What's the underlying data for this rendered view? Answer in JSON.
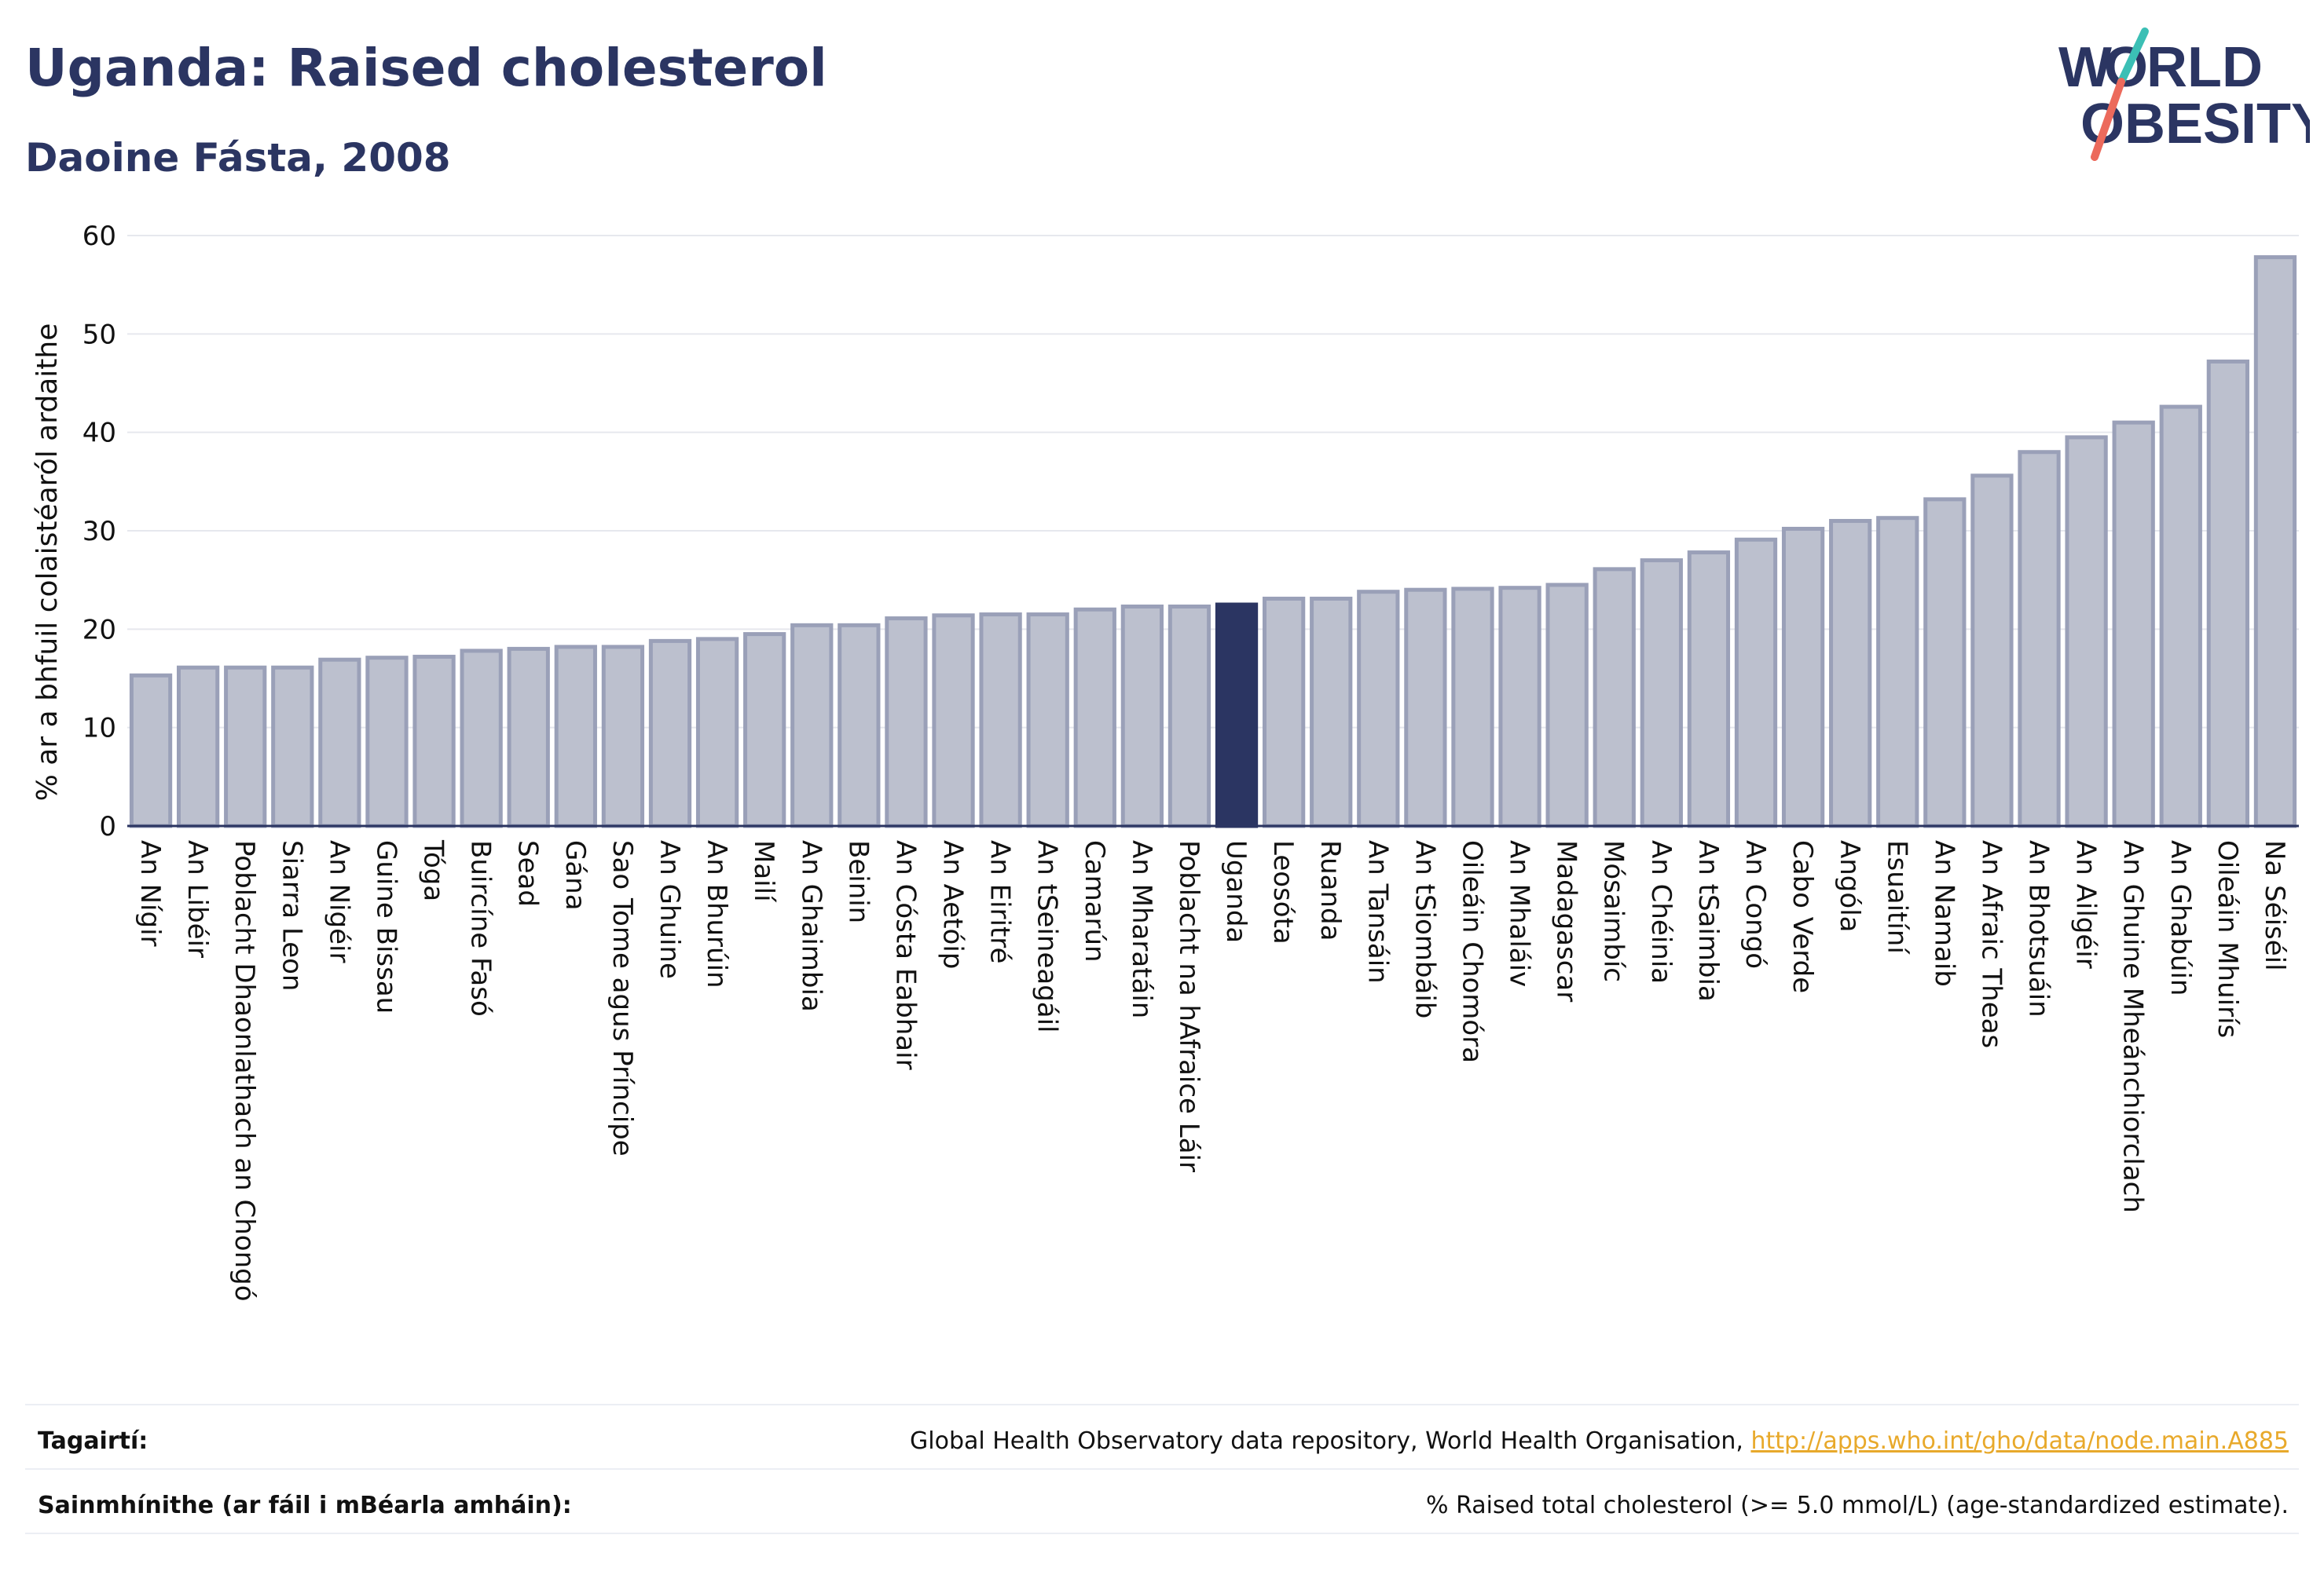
{
  "title": "Uganda: Raised cholesterol",
  "subtitle": "Daoine Fásta, 2008",
  "logo": {
    "line1": "W",
    "o_mark": "O",
    "line1_rest": "RLD",
    "line2": "OBESITY",
    "accent_teal": "#3bbfb5",
    "accent_coral": "#ec6a5c"
  },
  "colors": {
    "bar": "#bcc0ce",
    "bar_stroke": "#9aa0b8",
    "highlight": "#2b3562",
    "axis": "#2b3562",
    "grid": "#e6e8ee"
  },
  "chart_data": {
    "type": "bar",
    "ylabel": "% ar a bhfuil colaistéaról ardaithe",
    "ylim": [
      0,
      60
    ],
    "yticks": [
      0,
      10,
      20,
      30,
      40,
      50,
      60
    ],
    "grid": true,
    "highlight": "Uganda",
    "categories": [
      "An Nígir",
      "An Libéir",
      "Poblacht Dhaonlathach an Chongó",
      "Siarra Leon",
      "An Nigéir",
      "Guine Bissau",
      "Tóga",
      "Buircíne Fasó",
      "Sead",
      "Gána",
      "Sao Tome agus Príncipe",
      "An Ghuine",
      "An Bhurúin",
      "Mailí",
      "An Ghaimbia",
      "Beinin",
      "An Cósta Eabhair",
      "An Aetóip",
      "An Eiritré",
      "An tSeineagáil",
      "Camarún",
      "An Mharatáin",
      "Poblacht na hAfraice Láir",
      "Uganda",
      "Leosóta",
      "Ruanda",
      "An Tansáin",
      "An tSiombáib",
      "Oileáin Chomóra",
      "An Mhaláiv",
      "Madagascar",
      "Mósaimbíc",
      "An Chéinia",
      "An tSaimbia",
      "An Congó",
      "Cabo Verde",
      "Angóla",
      "Esuaitíní",
      "An Namaib",
      "An Afraic Theas",
      "An Bhotsuáin",
      "An Ailgéir",
      "An Ghuine Mheánchiorclach",
      "An Ghabúin",
      "Oileáin Mhuirís",
      "Na Séiséil"
    ],
    "values": [
      15.3,
      16.1,
      16.1,
      16.1,
      16.9,
      17.1,
      17.2,
      17.8,
      18.0,
      18.2,
      18.2,
      18.8,
      19.0,
      19.5,
      20.4,
      20.4,
      21.1,
      21.4,
      21.5,
      21.5,
      22.0,
      22.3,
      22.3,
      22.5,
      23.1,
      23.1,
      23.8,
      24.0,
      24.1,
      24.2,
      24.5,
      26.1,
      27.0,
      27.8,
      29.1,
      30.2,
      31.0,
      31.3,
      33.2,
      35.6,
      38.0,
      39.5,
      41.0,
      42.6,
      47.2,
      57.8
    ]
  },
  "footer": {
    "references_label": "Tagairtí:",
    "references_text": "Global Health Observatory data repository, World Health Organisation, ",
    "references_link": "http://apps.who.int/gho/data/node.main.A885",
    "definitions_label": "Sainmhínithe (ar fáil i mBéarla amháin):",
    "definitions_text": "% Raised total cholesterol (>= 5.0 mmol/L) (age-standardized estimate)."
  }
}
